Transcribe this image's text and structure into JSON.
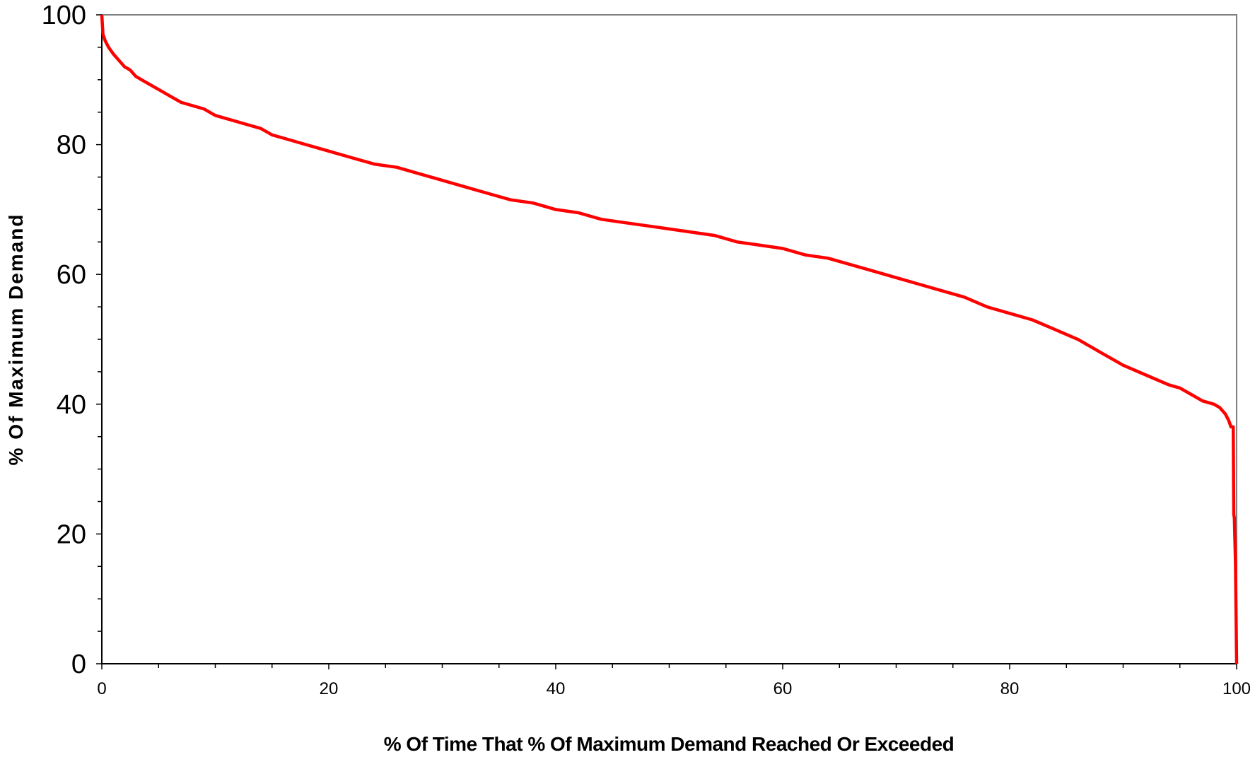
{
  "chart_data": {
    "type": "line",
    "title": "",
    "xlabel": "% Of Time That % Of Maximum Demand Reached Or Exceeded",
    "ylabel": "% Of Maximum Demand",
    "xlim": [
      0,
      100
    ],
    "ylim": [
      0,
      100
    ],
    "x_ticks": [
      "0",
      "20",
      "40",
      "60",
      "80",
      "100"
    ],
    "y_ticks": [
      "0",
      "20",
      "40",
      "60",
      "80",
      "100"
    ],
    "grid": false,
    "legend": "none",
    "line_color": "#ff0000",
    "frame_color": "#808080",
    "series": [
      {
        "x": [
          0,
          0.1,
          0.3,
          0.6,
          1,
          1.5,
          2,
          2.5,
          3,
          3.5,
          4,
          5,
          6,
          7,
          8,
          9,
          10,
          11,
          12,
          13,
          14,
          15,
          16,
          17,
          18,
          19,
          20,
          22,
          24,
          26,
          28,
          30,
          32,
          34,
          36,
          38,
          40,
          42,
          44,
          46,
          48,
          50,
          52,
          54,
          56,
          58,
          60,
          62,
          64,
          66,
          68,
          70,
          72,
          74,
          76,
          78,
          80,
          82,
          84,
          86,
          88,
          90,
          92,
          94,
          95,
          96,
          97,
          98,
          98.5,
          99,
          99.3,
          99.5,
          99.7,
          99.75,
          99.8,
          99.9,
          100
        ],
        "y": [
          100,
          97,
          96,
          95,
          94,
          93,
          92,
          91.5,
          90.5,
          90,
          89.5,
          88.5,
          87.5,
          86.5,
          86,
          85.5,
          84.5,
          84,
          83.5,
          83,
          82.5,
          81.5,
          81,
          80.5,
          80,
          79.5,
          79,
          78,
          77,
          76.5,
          75.5,
          74.5,
          73.5,
          72.5,
          71.5,
          71,
          70,
          69.5,
          68.5,
          68,
          67.5,
          67,
          66.5,
          66,
          65,
          64.5,
          64,
          63,
          62.5,
          61.5,
          60.5,
          59.5,
          58.5,
          57.5,
          56.5,
          55,
          54,
          53,
          51.5,
          50,
          48,
          46,
          44.5,
          43,
          42.5,
          41.5,
          40.5,
          40,
          39.5,
          38.5,
          37.5,
          36.5,
          36.5,
          23,
          22.5,
          15.5,
          0
        ]
      }
    ]
  }
}
